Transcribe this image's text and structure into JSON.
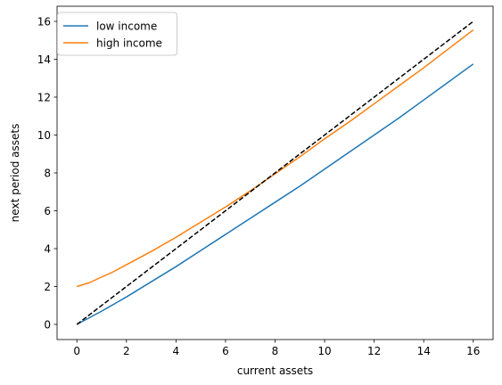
{
  "chart_data": {
    "type": "line",
    "xlabel": "current assets",
    "ylabel": "next period assets",
    "xlim": [
      -0.8,
      16.8
    ],
    "ylim": [
      -0.8,
      16.8
    ],
    "xticks": [
      0,
      2,
      4,
      6,
      8,
      10,
      12,
      14,
      16
    ],
    "yticks": [
      0,
      2,
      4,
      6,
      8,
      10,
      12,
      14,
      16
    ],
    "grid": false,
    "legend_position": "top-left",
    "series": [
      {
        "name": "low income",
        "color": "#1f77b4",
        "style": "solid",
        "x": [
          0,
          1,
          2,
          3,
          4,
          5,
          6,
          7,
          8,
          9,
          10,
          11,
          12,
          13,
          14,
          15,
          16
        ],
        "y": [
          0.0,
          0.7,
          1.45,
          2.25,
          3.05,
          3.9,
          4.75,
          5.6,
          6.45,
          7.3,
          8.2,
          9.1,
          10.0,
          10.9,
          11.85,
          12.8,
          13.75
        ]
      },
      {
        "name": "high income",
        "color": "#ff7f0e",
        "style": "solid",
        "x": [
          0,
          0.5,
          1,
          1.5,
          2,
          3,
          4,
          5,
          6,
          7,
          8,
          9,
          10,
          11,
          12,
          13,
          14,
          15,
          16
        ],
        "y": [
          2.0,
          2.2,
          2.5,
          2.8,
          3.15,
          3.85,
          4.6,
          5.4,
          6.2,
          7.05,
          7.95,
          8.85,
          9.8,
          10.7,
          11.65,
          12.6,
          13.55,
          14.55,
          15.55
        ]
      },
      {
        "name": "",
        "color": "#000000",
        "style": "dashed",
        "x": [
          0,
          16
        ],
        "y": [
          0,
          16
        ]
      }
    ]
  }
}
